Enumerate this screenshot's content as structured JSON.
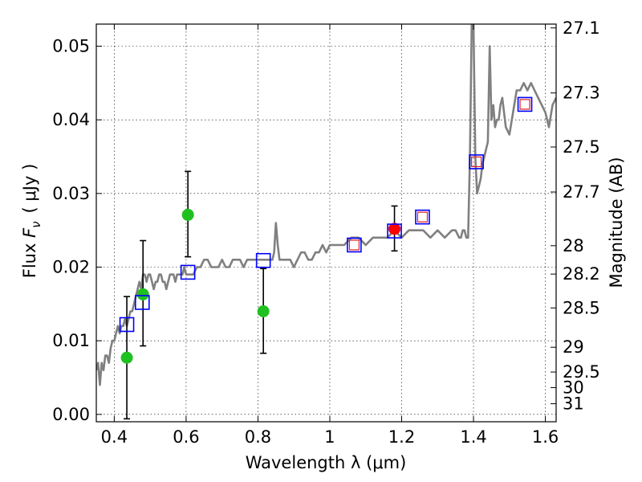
{
  "chart_data": {
    "type": "scatter",
    "title": "",
    "xlabel": "Wavelength  λ (μm)",
    "ylabel_left": {
      "prefix": "Flux ",
      "symbol": "F",
      "subscript": "ν",
      "unit": "( μJy )"
    },
    "ylabel_right": "Magnitude (AB)",
    "xlim": [
      0.35,
      1.63
    ],
    "ylim": [
      -0.001,
      0.053
    ],
    "grid": true,
    "x_ticks": [
      {
        "value": 0.4,
        "label": "0.4"
      },
      {
        "value": 0.6,
        "label": "0.6"
      },
      {
        "value": 0.8,
        "label": "0.8"
      },
      {
        "value": 1.0,
        "label": "1"
      },
      {
        "value": 1.2,
        "label": "1.2"
      },
      {
        "value": 1.4,
        "label": "1.4"
      },
      {
        "value": 1.6,
        "label": "1.6"
      }
    ],
    "y_ticks": [
      {
        "value": 0.0,
        "label": "0.00"
      },
      {
        "value": 0.01,
        "label": "0.01"
      },
      {
        "value": 0.02,
        "label": "0.02"
      },
      {
        "value": 0.03,
        "label": "0.03"
      },
      {
        "value": 0.04,
        "label": "0.04"
      },
      {
        "value": 0.05,
        "label": "0.05"
      }
    ],
    "magnitude_ticks": [
      {
        "mag": 27.1,
        "label": "27.1"
      },
      {
        "mag": 27.3,
        "label": "27.3"
      },
      {
        "mag": 27.5,
        "label": "27.5"
      },
      {
        "mag": 27.7,
        "label": "27.7"
      },
      {
        "mag": 28.0,
        "label": "28"
      },
      {
        "mag": 28.2,
        "label": "28.2"
      },
      {
        "mag": 28.5,
        "label": "28.5"
      },
      {
        "mag": 29.0,
        "label": "29"
      },
      {
        "mag": 29.5,
        "label": "29.5"
      },
      {
        "mag": 30.0,
        "label": "30"
      },
      {
        "mag": 31.0,
        "label": "31"
      }
    ],
    "series": [
      {
        "name": "model spectrum",
        "kind": "line",
        "color": "#808080",
        "x": [
          0.35,
          0.355,
          0.36,
          0.365,
          0.37,
          0.375,
          0.38,
          0.385,
          0.39,
          0.395,
          0.4,
          0.405,
          0.41,
          0.415,
          0.42,
          0.425,
          0.43,
          0.435,
          0.44,
          0.445,
          0.45,
          0.455,
          0.46,
          0.465,
          0.47,
          0.475,
          0.48,
          0.485,
          0.49,
          0.495,
          0.5,
          0.505,
          0.51,
          0.515,
          0.52,
          0.525,
          0.53,
          0.535,
          0.54,
          0.545,
          0.55,
          0.555,
          0.56,
          0.565,
          0.57,
          0.575,
          0.58,
          0.585,
          0.59,
          0.595,
          0.6,
          0.61,
          0.62,
          0.63,
          0.64,
          0.65,
          0.66,
          0.67,
          0.68,
          0.69,
          0.7,
          0.71,
          0.72,
          0.73,
          0.74,
          0.75,
          0.76,
          0.77,
          0.78,
          0.79,
          0.8,
          0.81,
          0.82,
          0.83,
          0.84,
          0.845,
          0.85,
          0.855,
          0.86,
          0.87,
          0.88,
          0.89,
          0.9,
          0.91,
          0.92,
          0.93,
          0.94,
          0.95,
          0.96,
          0.97,
          0.98,
          0.99,
          1.0,
          1.02,
          1.04,
          1.06,
          1.08,
          1.1,
          1.12,
          1.14,
          1.16,
          1.18,
          1.2,
          1.22,
          1.24,
          1.26,
          1.28,
          1.3,
          1.32,
          1.34,
          1.35,
          1.36,
          1.365,
          1.37,
          1.375,
          1.38,
          1.385,
          1.39,
          1.395,
          1.4,
          1.405,
          1.41,
          1.415,
          1.42,
          1.425,
          1.43,
          1.435,
          1.44,
          1.445,
          1.45,
          1.455,
          1.46,
          1.465,
          1.47,
          1.475,
          1.48,
          1.49,
          1.5,
          1.51,
          1.52,
          1.53,
          1.54,
          1.55,
          1.56,
          1.57,
          1.58,
          1.59,
          1.6,
          1.61,
          1.62,
          1.63
        ],
        "y": [
          0.006,
          0.007,
          0.004,
          0.007,
          0.006,
          0.008,
          0.008,
          0.007,
          0.009,
          0.01,
          0.01,
          0.011,
          0.012,
          0.011,
          0.012,
          0.012,
          0.013,
          0.012,
          0.013,
          0.014,
          0.014,
          0.015,
          0.016,
          0.017,
          0.018,
          0.017,
          0.019,
          0.019,
          0.018,
          0.019,
          0.019,
          0.018,
          0.017,
          0.018,
          0.018,
          0.019,
          0.019,
          0.018,
          0.018,
          0.017,
          0.018,
          0.019,
          0.019,
          0.019,
          0.018,
          0.019,
          0.019,
          0.019,
          0.019,
          0.02,
          0.019,
          0.019,
          0.019,
          0.02,
          0.02,
          0.021,
          0.021,
          0.02,
          0.02,
          0.02,
          0.021,
          0.02,
          0.02,
          0.021,
          0.021,
          0.021,
          0.02,
          0.021,
          0.021,
          0.021,
          0.021,
          0.021,
          0.021,
          0.021,
          0.021,
          0.022,
          0.026,
          0.023,
          0.021,
          0.021,
          0.021,
          0.021,
          0.02,
          0.021,
          0.022,
          0.022,
          0.021,
          0.021,
          0.022,
          0.022,
          0.023,
          0.022,
          0.023,
          0.023,
          0.023,
          0.024,
          0.024,
          0.023,
          0.024,
          0.024,
          0.024,
          0.025,
          0.024,
          0.025,
          0.025,
          0.025,
          0.024,
          0.025,
          0.024,
          0.025,
          0.025,
          0.024,
          0.024,
          0.025,
          0.025,
          0.024,
          0.024,
          0.035,
          0.053,
          0.053,
          0.035,
          0.03,
          0.031,
          0.032,
          0.034,
          0.035,
          0.036,
          0.037,
          0.05,
          0.04,
          0.042,
          0.039,
          0.04,
          0.04,
          0.042,
          0.043,
          0.039,
          0.038,
          0.041,
          0.044,
          0.044,
          0.045,
          0.044,
          0.045,
          0.044,
          0.043,
          0.042,
          0.041,
          0.039,
          0.042,
          0.043
        ],
        "gap_after_index": null
      },
      {
        "name": "observed (green)",
        "kind": "errorbar",
        "color": "#20c020",
        "points": [
          {
            "x": 0.435,
            "y": 0.0077,
            "ylo": -0.0006,
            "yhi": 0.016
          },
          {
            "x": 0.48,
            "y": 0.0163,
            "ylo": 0.0093,
            "yhi": 0.0236
          },
          {
            "x": 0.605,
            "y": 0.0271,
            "ylo": 0.0214,
            "yhi": 0.033
          },
          {
            "x": 0.815,
            "y": 0.014,
            "ylo": 0.0083,
            "yhi": 0.0198
          }
        ]
      },
      {
        "name": "observed (red)",
        "kind": "errorbar",
        "color": "#ff0000",
        "points": [
          {
            "x": 1.18,
            "y": 0.0252,
            "ylo": 0.0222,
            "yhi": 0.0283
          }
        ]
      },
      {
        "name": "model photometry (blue)",
        "kind": "square",
        "color": "#0000ff",
        "points": [
          {
            "x": 0.435,
            "y": 0.0122
          },
          {
            "x": 0.478,
            "y": 0.0152
          },
          {
            "x": 0.605,
            "y": 0.0193
          },
          {
            "x": 0.815,
            "y": 0.0209
          },
          {
            "x": 1.068,
            "y": 0.023
          },
          {
            "x": 1.18,
            "y": 0.0249
          },
          {
            "x": 1.258,
            "y": 0.0268
          },
          {
            "x": 1.408,
            "y": 0.0343
          },
          {
            "x": 1.543,
            "y": 0.0421
          }
        ]
      },
      {
        "name": "model photometry (red)",
        "kind": "square-small",
        "color": "#e02020",
        "points": [
          {
            "x": 1.068,
            "y": 0.023
          },
          {
            "x": 1.258,
            "y": 0.0268
          },
          {
            "x": 1.408,
            "y": 0.0343
          },
          {
            "x": 1.543,
            "y": 0.0421
          }
        ]
      }
    ]
  }
}
